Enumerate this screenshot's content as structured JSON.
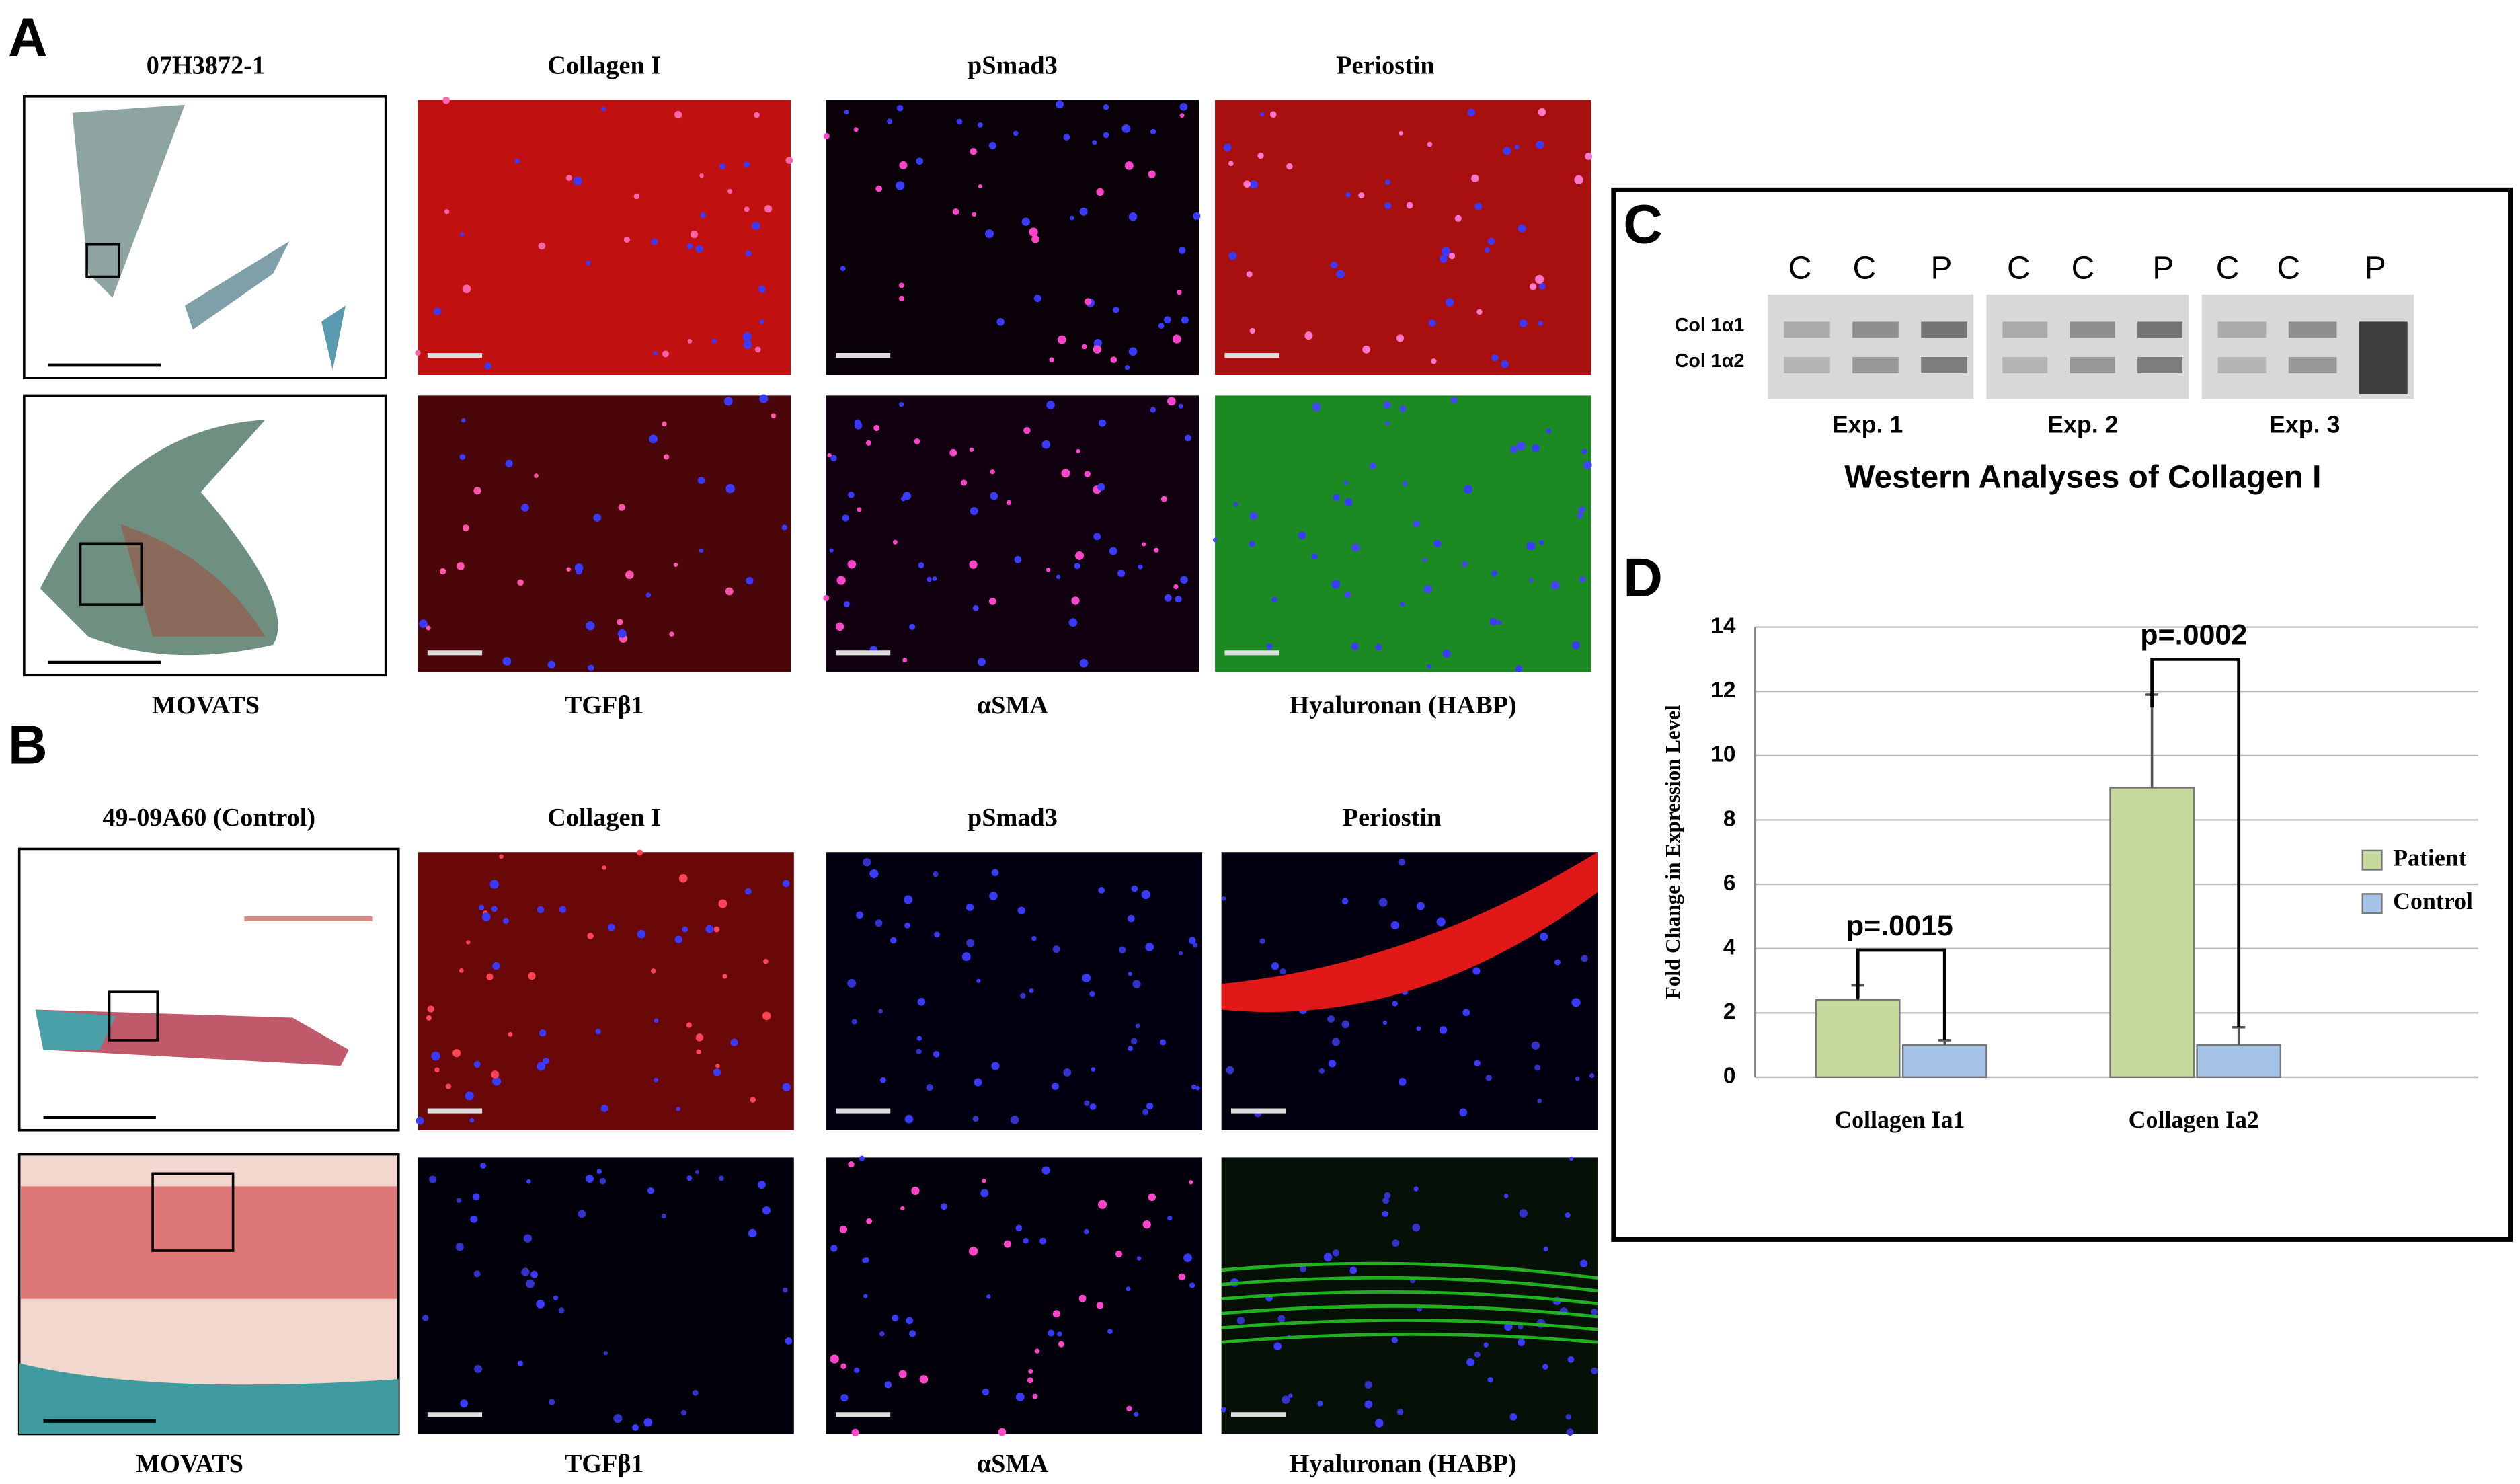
{
  "panel_a": {
    "label": "A",
    "sample": "07H3872-1",
    "top_labels": [
      "Collagen I",
      "pSmad3",
      "Periostin"
    ],
    "bottom_labels": [
      "MOVATS",
      "TGFβ1",
      "αSMA",
      "Hyaluronan (HABP)"
    ]
  },
  "panel_b": {
    "label": "B",
    "sample": "49-09A60 (Control)",
    "top_labels": [
      "Collagen I",
      "pSmad3",
      "Periostin"
    ],
    "bottom_labels": [
      "MOVATS",
      "TGFβ1",
      "αSMA",
      "Hyaluronan (HABP)"
    ]
  },
  "panel_c": {
    "label": "C",
    "lanes": [
      "C",
      "C",
      "P",
      "C",
      "C",
      "P",
      "C",
      "C",
      "P"
    ],
    "bands": [
      "Col 1α1",
      "Col 1α2"
    ],
    "experiments": [
      "Exp. 1",
      "Exp. 2",
      "Exp. 3"
    ],
    "title": "Western Analyses of Collagen I"
  },
  "panel_d": {
    "label": "D"
  },
  "chart_data": {
    "type": "bar",
    "y_label": "Fold Change in Expression Level",
    "categories": [
      "Collagen Ia1",
      "Collagen Ia2"
    ],
    "series": [
      {
        "name": "Patient",
        "color": "#c4d99b",
        "values": [
          2.4,
          9
        ],
        "errors": [
          0.45,
          2.9
        ]
      },
      {
        "name": "Control",
        "color": "#a4c2e6",
        "values": [
          1,
          1
        ],
        "errors": [
          0.15,
          0.55
        ]
      }
    ],
    "annotations": [
      "p=.0015",
      "p=.0002"
    ],
    "ylim": [
      0,
      14
    ],
    "yticks": [
      0,
      2,
      4,
      6,
      8,
      10,
      12,
      14
    ],
    "grid": true,
    "legend": "right"
  }
}
